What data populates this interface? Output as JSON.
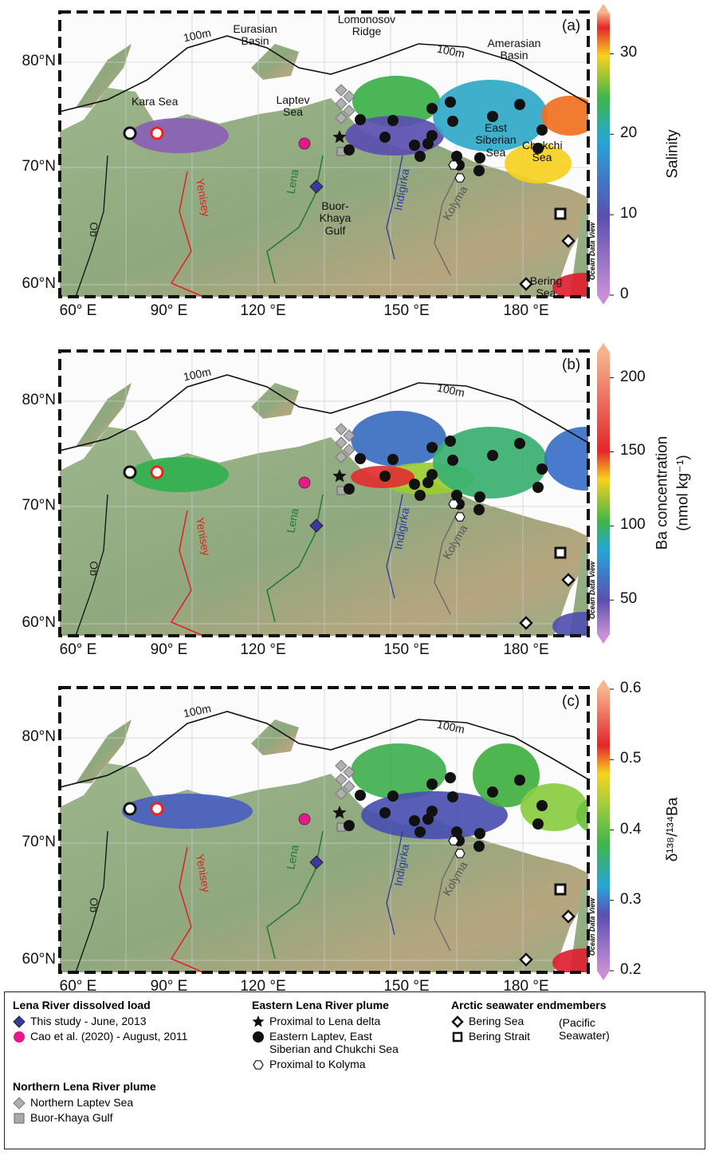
{
  "panels": [
    {
      "label": "(a)",
      "lat_labels": [
        "80°N",
        "70°N",
        "60°N"
      ],
      "lon_labels": [
        "60° E",
        "90° E",
        "120 °E",
        "150 °E",
        "180 °E"
      ],
      "place_labels": [
        "100m",
        "100m",
        "Eurasian Basin",
        "Lomonosov Ridge",
        "Amerasian Basin",
        "Kara Sea",
        "Laptev Sea",
        "East Siberian Sea",
        "Chukchi Sea",
        "Buor-Khaya Gulf",
        "Bering Sea",
        "Lena",
        "Yenisey",
        "Ob",
        "Indigirka",
        "Kolyma"
      ],
      "watermark": "Ocean Data View",
      "colorbar": {
        "title": [
          "Salinity"
        ],
        "lim": [
          0,
          35
        ],
        "ticks": [
          0,
          10,
          20,
          30
        ]
      }
    },
    {
      "label": "(b)",
      "lat_labels": [
        "80°N",
        "70°N",
        "60°N"
      ],
      "lon_labels": [
        "60° E",
        "90° E",
        "120 °E",
        "150 °E",
        "180 °E"
      ],
      "place_labels": [
        "100m",
        "100m",
        "Lena",
        "Yenisey",
        "Ob",
        "Indigirka",
        "Kolyma"
      ],
      "watermark": "Ocean Data View",
      "colorbar": {
        "title": [
          "Ba concentration",
          "(nmol kg⁻¹)"
        ],
        "lim": [
          27,
          217
        ],
        "ticks": [
          50,
          100,
          150,
          200
        ]
      }
    },
    {
      "label": "(c)",
      "lat_labels": [
        "80°N",
        "70°N",
        "60°N"
      ],
      "lon_labels": [
        "60° E",
        "90° E",
        "120 °E",
        "150 °E",
        "180 °E"
      ],
      "place_labels": [
        "100m",
        "100m",
        "Lena",
        "Yenisey",
        "Ob",
        "Indigirka",
        "Kolyma"
      ],
      "watermark": "Ocean Data View",
      "colorbar": {
        "title": [
          "δ¹³⁸/¹³⁴Ba"
        ],
        "lim": [
          0.2,
          0.6
        ],
        "ticks": [
          0.2,
          0.3,
          0.4,
          0.5,
          0.6
        ]
      }
    }
  ],
  "legend": {
    "groups": [
      {
        "title": "Lena River dissolved load",
        "items": [
          "This study - June, 2013",
          "Cao et al. (2020) - August, 2011"
        ]
      },
      {
        "title": "Northern Lena River plume",
        "items": [
          "Northern Laptev Sea",
          "Buor-Khaya Gulf"
        ]
      },
      {
        "title": "Eastern Lena River plume",
        "items": [
          "Proximal to Lena delta",
          "Eastern Laptev, East Siberian and Chukchi Sea",
          "Proximal to Kolyma"
        ]
      },
      {
        "title": "Arctic seawater endmembers",
        "items": [
          "Bering Sea",
          "Bering Strait"
        ],
        "note": "(Pacific Seawater)"
      }
    ]
  }
}
